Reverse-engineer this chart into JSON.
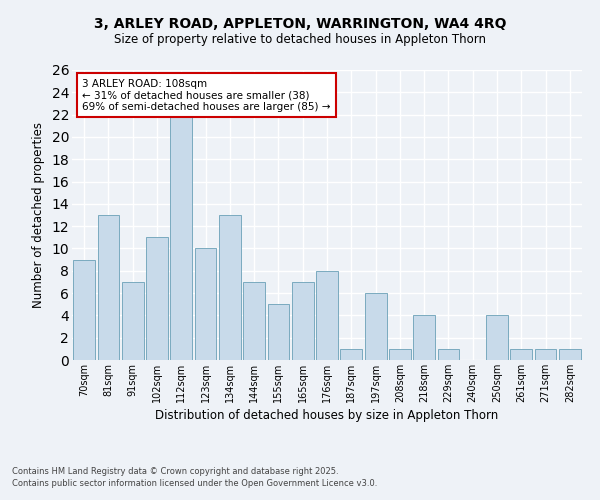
{
  "title1": "3, ARLEY ROAD, APPLETON, WARRINGTON, WA4 4RQ",
  "title2": "Size of property relative to detached houses in Appleton Thorn",
  "xlabel": "Distribution of detached houses by size in Appleton Thorn",
  "ylabel": "Number of detached properties",
  "categories": [
    "70sqm",
    "81sqm",
    "91sqm",
    "102sqm",
    "112sqm",
    "123sqm",
    "134sqm",
    "144sqm",
    "155sqm",
    "165sqm",
    "176sqm",
    "187sqm",
    "197sqm",
    "208sqm",
    "218sqm",
    "229sqm",
    "240sqm",
    "250sqm",
    "261sqm",
    "271sqm",
    "282sqm"
  ],
  "values": [
    9,
    13,
    7,
    11,
    22,
    10,
    13,
    7,
    5,
    7,
    8,
    1,
    6,
    1,
    4,
    1,
    0,
    4,
    1,
    1,
    1
  ],
  "bar_color": "#c8daea",
  "bar_edge_color": "#7aaabf",
  "annotation_title": "3 ARLEY ROAD: 108sqm",
  "annotation_line1": "← 31% of detached houses are smaller (38)",
  "annotation_line2": "69% of semi-detached houses are larger (85) →",
  "annotation_box_color": "#ffffff",
  "annotation_box_edge": "#cc0000",
  "ylim": [
    0,
    26
  ],
  "yticks": [
    0,
    2,
    4,
    6,
    8,
    10,
    12,
    14,
    16,
    18,
    20,
    22,
    24,
    26
  ],
  "footnote1": "Contains HM Land Registry data © Crown copyright and database right 2025.",
  "footnote2": "Contains public sector information licensed under the Open Government Licence v3.0.",
  "bg_color": "#eef2f7",
  "grid_color": "#ffffff"
}
